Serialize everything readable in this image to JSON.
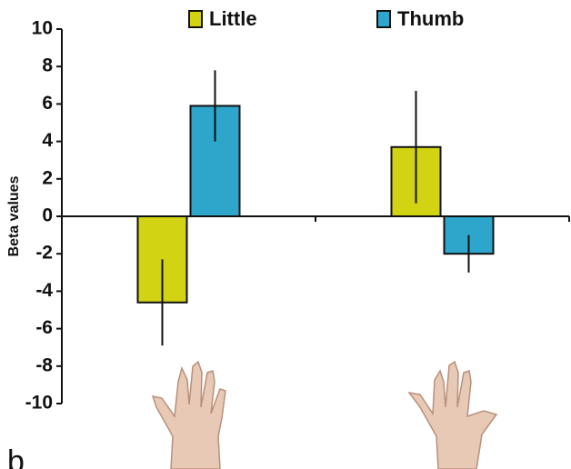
{
  "chart_data": {
    "type": "bar",
    "panel_label": "b",
    "y_label": "Beta values",
    "categories": [
      null,
      null
    ],
    "series": [
      {
        "name": "Little",
        "color": "#d2d312",
        "values": [
          -4.6,
          3.7
        ],
        "errors": [
          2.3,
          3.0
        ]
      },
      {
        "name": "Thumb",
        "color": "#2ea6cc",
        "values": [
          5.9,
          -2.0
        ],
        "errors": [
          1.9,
          1.0
        ]
      }
    ],
    "ylim": [
      -10,
      10
    ],
    "yticks": [
      -10,
      -8,
      -6,
      -4,
      -2,
      0,
      2,
      4,
      6,
      8,
      10
    ]
  }
}
